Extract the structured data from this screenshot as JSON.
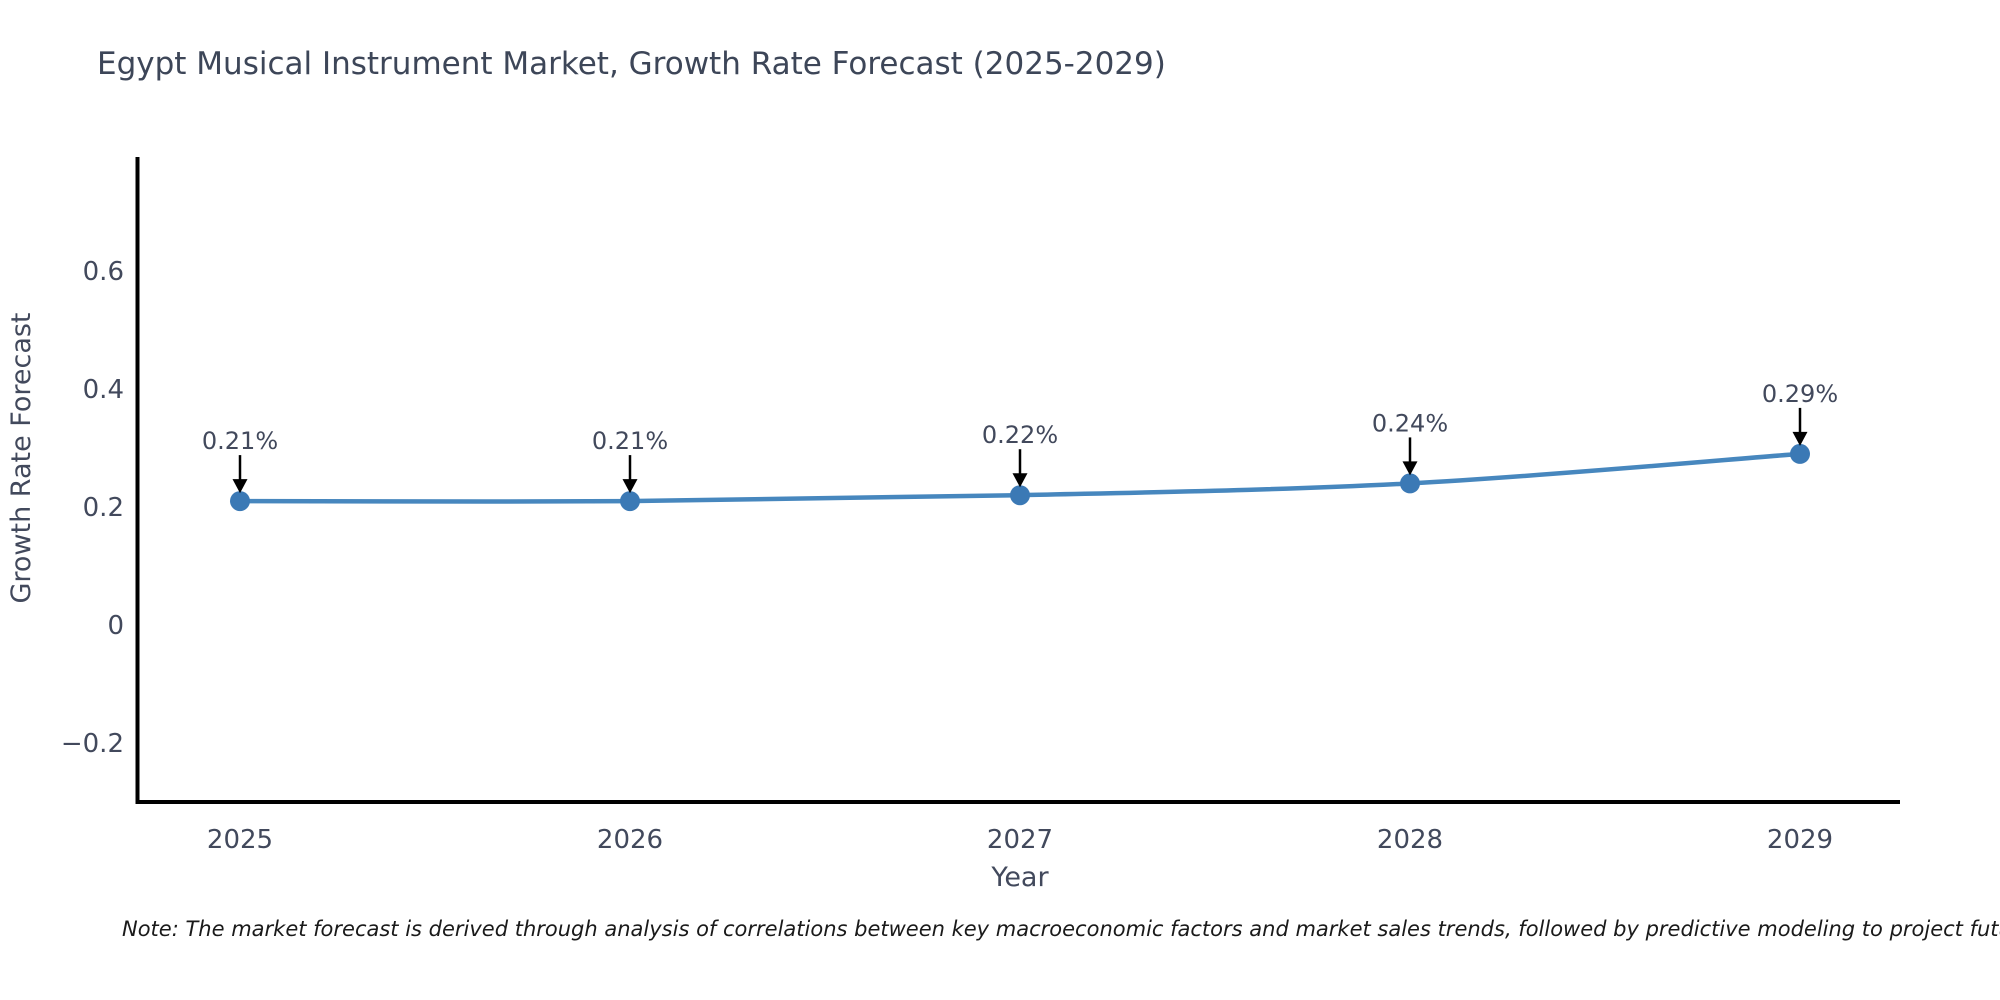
{
  "note": "Note: The market forecast is derived through analysis of correlations between key macroeconomic factors and market sales trends, followed by predictive modeling to project future sal",
  "chart_data": {
    "type": "line",
    "title": "Egypt Musical Instrument Market, Growth Rate Forecast (2025-2029)",
    "xlabel": "Year",
    "ylabel": "Growth Rate Forecast",
    "categories": [
      "2025",
      "2026",
      "2027",
      "2028",
      "2029"
    ],
    "series": [
      {
        "name": "Growth Rate Forecast",
        "values": [
          0.21,
          0.21,
          0.22,
          0.24,
          0.29
        ],
        "point_labels": [
          "0.21%",
          "0.21%",
          "0.22%",
          "0.24%",
          "0.29%"
        ]
      }
    ],
    "yticks": [
      {
        "value": -0.2,
        "label": "−0.2"
      },
      {
        "value": 0,
        "label": "0"
      },
      {
        "value": 0.2,
        "label": "0.2"
      },
      {
        "value": 0.4,
        "label": "0.4"
      },
      {
        "value": 0.6,
        "label": "0.6"
      }
    ],
    "ylim": [
      -0.3,
      0.79
    ],
    "grid": false,
    "legend": "none",
    "annotation_style": "black-arrow-pointing-down-to-point",
    "colors": {
      "line": "#4787be",
      "marker": "#3b79b5",
      "text": "#42495c",
      "title": "#3d4658",
      "axis": "#000000",
      "note": "#1a1a1a",
      "background": "#ffffff"
    }
  }
}
